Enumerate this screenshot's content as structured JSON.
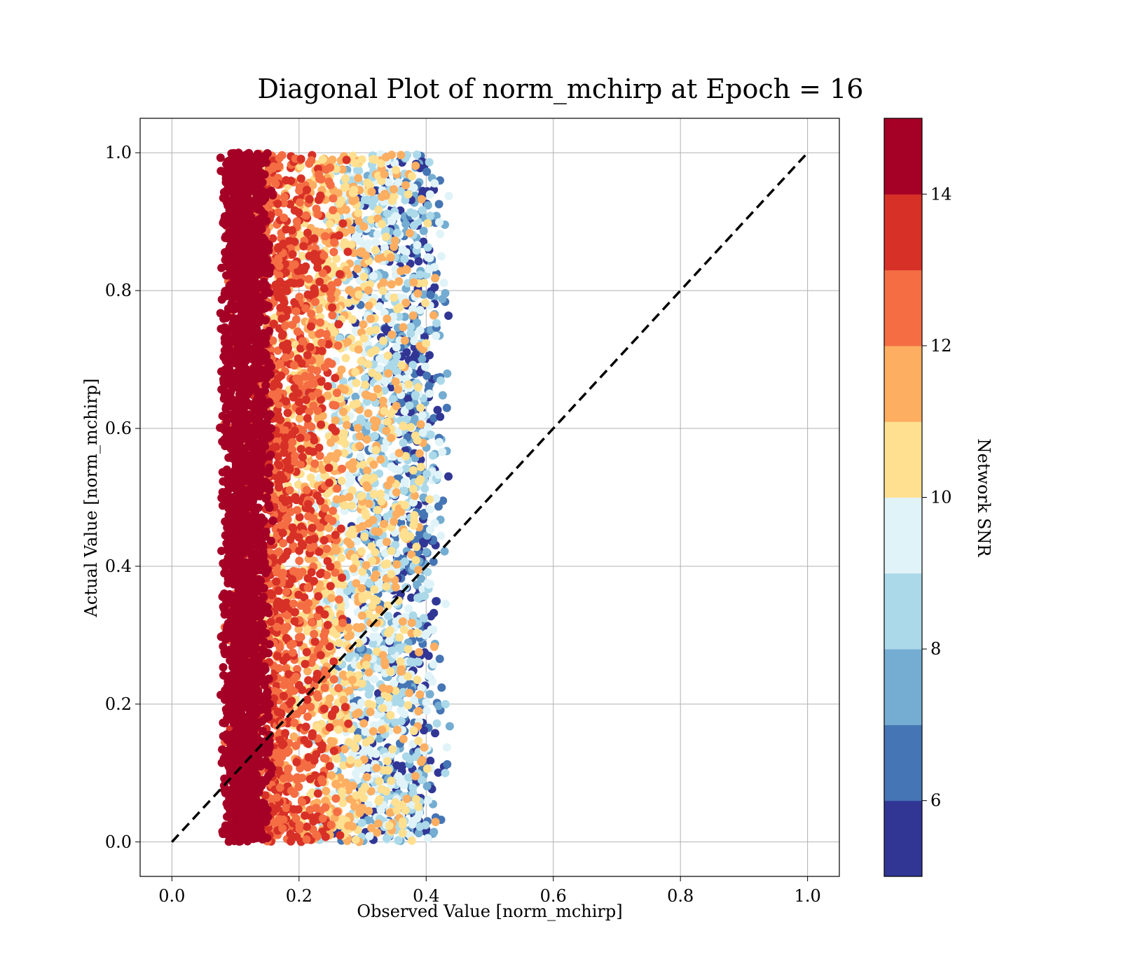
{
  "chart_data": {
    "type": "scatter",
    "title": "Diagonal Plot of norm_mchirp at Epoch = 16",
    "xlabel": "Observed Value [norm_mchirp]",
    "ylabel": "Actual Value [norm_mchirp]",
    "xlim": [
      -0.05,
      1.05
    ],
    "ylim": [
      -0.05,
      1.05
    ],
    "x_ticks": [
      "0.0",
      "0.2",
      "0.4",
      "0.6",
      "0.8",
      "1.0"
    ],
    "y_ticks": [
      "0.0",
      "0.2",
      "0.4",
      "0.6",
      "0.8",
      "1.0"
    ],
    "grid": true,
    "reference_line": {
      "x": [
        0,
        1
      ],
      "y": [
        0,
        1
      ],
      "style": "dashed",
      "color": "#000000"
    },
    "colorbar": {
      "label": "Network SNR",
      "range": [
        5,
        15
      ],
      "ticks": [
        "6",
        "8",
        "10",
        "12",
        "14"
      ],
      "colors": [
        "#313695",
        "#4575b4",
        "#74add1",
        "#abd9e9",
        "#e0f3f8",
        "#fee090",
        "#fdae61",
        "#f46d43",
        "#d73027",
        "#a50026"
      ]
    },
    "point_clouds": [
      {
        "snr_band": "14-15",
        "x_range": [
          0.075,
          0.16
        ],
        "y_range": [
          0.0,
          1.0
        ],
        "x_peak": 0.11
      },
      {
        "snr_band": "12-14",
        "x_range": [
          0.08,
          0.28
        ],
        "y_range": [
          0.0,
          1.0
        ],
        "x_peak": 0.16
      },
      {
        "snr_band": "10-12",
        "x_range": [
          0.12,
          0.42
        ],
        "y_range": [
          0.0,
          1.0
        ],
        "x_peak": 0.25
      },
      {
        "snr_band": "8-10",
        "x_range": [
          0.2,
          0.44
        ],
        "y_range": [
          0.0,
          1.0
        ],
        "x_peak": 0.33
      },
      {
        "snr_band": "5-8",
        "x_range": [
          0.25,
          0.44
        ],
        "y_range": [
          0.0,
          1.0
        ],
        "x_peak": 0.38
      }
    ]
  }
}
